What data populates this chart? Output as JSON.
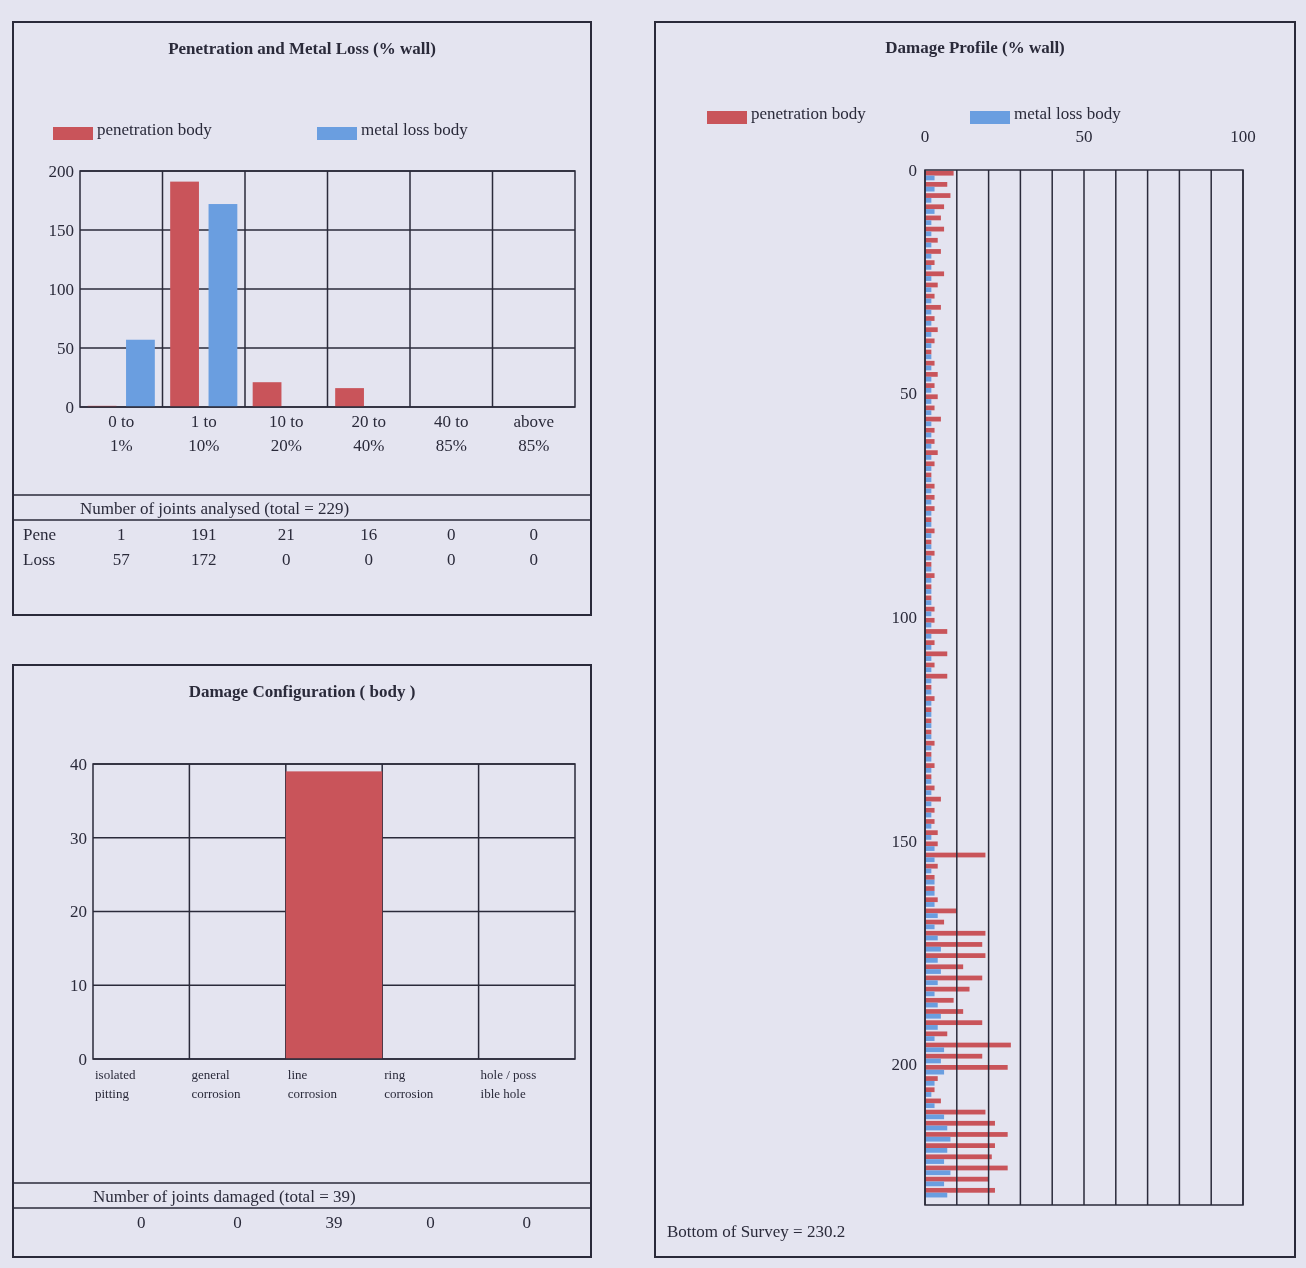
{
  "chart_data": [
    {
      "type": "bar",
      "title": "Penetration and Metal Loss (% wall)",
      "categories": [
        "0 to\n1%",
        "1 to\n10%",
        "10 to\n20%",
        "20 to\n40%",
        "40 to\n85%",
        "above\n85%"
      ],
      "series": [
        {
          "name": "penetration body",
          "color": "#c9545a",
          "values": [
            1,
            191,
            21,
            16,
            0,
            0
          ]
        },
        {
          "name": "metal loss body",
          "color": "#6a9ee0",
          "values": [
            57,
            172,
            0,
            0,
            0,
            0
          ]
        }
      ],
      "ylim": [
        0,
        200
      ],
      "yticks": [
        0,
        50,
        100,
        150,
        200
      ],
      "grid": true,
      "legend": "top",
      "data_labels": true,
      "annotations": [
        "Number of joints analysed (total = 229)",
        "Pene",
        "Loss"
      ]
    },
    {
      "type": "bar",
      "title": "Damage Configuration ( body )",
      "categories": [
        "isolated\npitting",
        "general\ncorrosion",
        "line\ncorrosion",
        "ring\ncorrosion",
        "hole / poss\nible hole"
      ],
      "values": [
        0,
        0,
        39,
        0,
        0
      ],
      "color": "#c9545a",
      "ylim": [
        0,
        40
      ],
      "yticks": [
        0,
        10,
        20,
        30,
        40
      ],
      "grid": true,
      "data_labels": true,
      "annotations": [
        "Number of joints damaged (total = 39)"
      ]
    },
    {
      "type": "bar",
      "title": "Damage Profile (% wall)",
      "orientation": "horizontal",
      "x": [
        1.25,
        3.75,
        6.25,
        8.75,
        11.25,
        13.75,
        16.25,
        18.75,
        21.25,
        23.75,
        26.25,
        28.75,
        31.25,
        33.75,
        36.25,
        38.75,
        41.25,
        43.75,
        46.25,
        48.75,
        51.25,
        53.75,
        56.25,
        58.75,
        61.25,
        63.75,
        66.25,
        68.75,
        71.25,
        73.75,
        76.25,
        78.75,
        81.25,
        83.75,
        86.25,
        88.75,
        91.25,
        93.75,
        96.25,
        98.75,
        101.25,
        103.75,
        106.25,
        108.75,
        111.25,
        113.75,
        116.25,
        118.75,
        121.25,
        123.75,
        126.25,
        128.75,
        131.25,
        133.75,
        136.25,
        138.75,
        141.25,
        143.75,
        146.25,
        148.75,
        151.25,
        153.75,
        156.25,
        158.75,
        161.25,
        163.75,
        166.25,
        168.75,
        171.25,
        173.75,
        176.25,
        178.75,
        181.25,
        183.75,
        186.25,
        188.75,
        191.25,
        193.75,
        196.25,
        198.75,
        201.25,
        203.75,
        206.25,
        208.75,
        211.25,
        213.75,
        216.25,
        218.75,
        221.25,
        223.75,
        226.25,
        228.75
      ],
      "series": [
        {
          "name": "penetration body",
          "color": "#c9545a",
          "values": [
            9,
            7,
            8,
            6,
            5,
            6,
            4,
            5,
            3,
            6,
            4,
            3,
            5,
            3,
            4,
            3,
            2,
            3,
            4,
            3,
            4,
            3,
            5,
            3,
            3,
            4,
            3,
            2,
            3,
            3,
            3,
            2,
            3,
            2,
            3,
            2,
            3,
            2,
            2,
            3,
            3,
            7,
            3,
            7,
            3,
            7,
            2,
            3,
            2,
            2,
            2,
            3,
            2,
            3,
            2,
            3,
            5,
            3,
            3,
            4,
            4,
            19,
            4,
            3,
            3,
            4,
            10,
            6,
            19,
            18,
            19,
            12,
            18,
            14,
            9,
            12,
            18,
            7,
            27,
            18,
            26,
            4,
            3,
            5,
            19,
            22,
            26,
            22,
            21,
            26,
            20,
            22
          ]
        },
        {
          "name": "metal loss body",
          "color": "#6a9ee0",
          "values": [
            3,
            3,
            2,
            3,
            2,
            2,
            2,
            2,
            2,
            2,
            2,
            2,
            2,
            2,
            2,
            2,
            2,
            2,
            2,
            2,
            2,
            2,
            2,
            2,
            2,
            2,
            2,
            2,
            2,
            2,
            2,
            2,
            2,
            2,
            2,
            2,
            2,
            2,
            2,
            2,
            2,
            2,
            2,
            2,
            2,
            2,
            2,
            2,
            2,
            2,
            2,
            2,
            2,
            2,
            2,
            2,
            2,
            2,
            2,
            2,
            3,
            3,
            2,
            3,
            3,
            3,
            4,
            3,
            4,
            5,
            4,
            5,
            4,
            3,
            4,
            5,
            4,
            3,
            6,
            5,
            6,
            3,
            2,
            3,
            6,
            7,
            8,
            7,
            6,
            8,
            6,
            7
          ]
        }
      ],
      "xlim": [
        0,
        100
      ],
      "xticks": [
        0,
        {
          "value": 10,
          "label": null
        },
        {
          "value": 20,
          "label": null
        },
        {
          "value": 30,
          "label": null
        },
        {
          "value": 40,
          "label": null
        },
        50,
        {
          "value": 60,
          "label": null
        },
        {
          "value": 70,
          "label": null
        },
        {
          "value": 80,
          "label": null
        },
        {
          "value": 90,
          "label": null
        },
        100
      ],
      "ylim": [
        231.5,
        0
      ],
      "yticks": [
        0,
        50,
        100,
        150,
        200
      ],
      "grid": "x",
      "legend": "top left",
      "annotations": [
        "Bottom of Survey = 230.2"
      ]
    }
  ]
}
